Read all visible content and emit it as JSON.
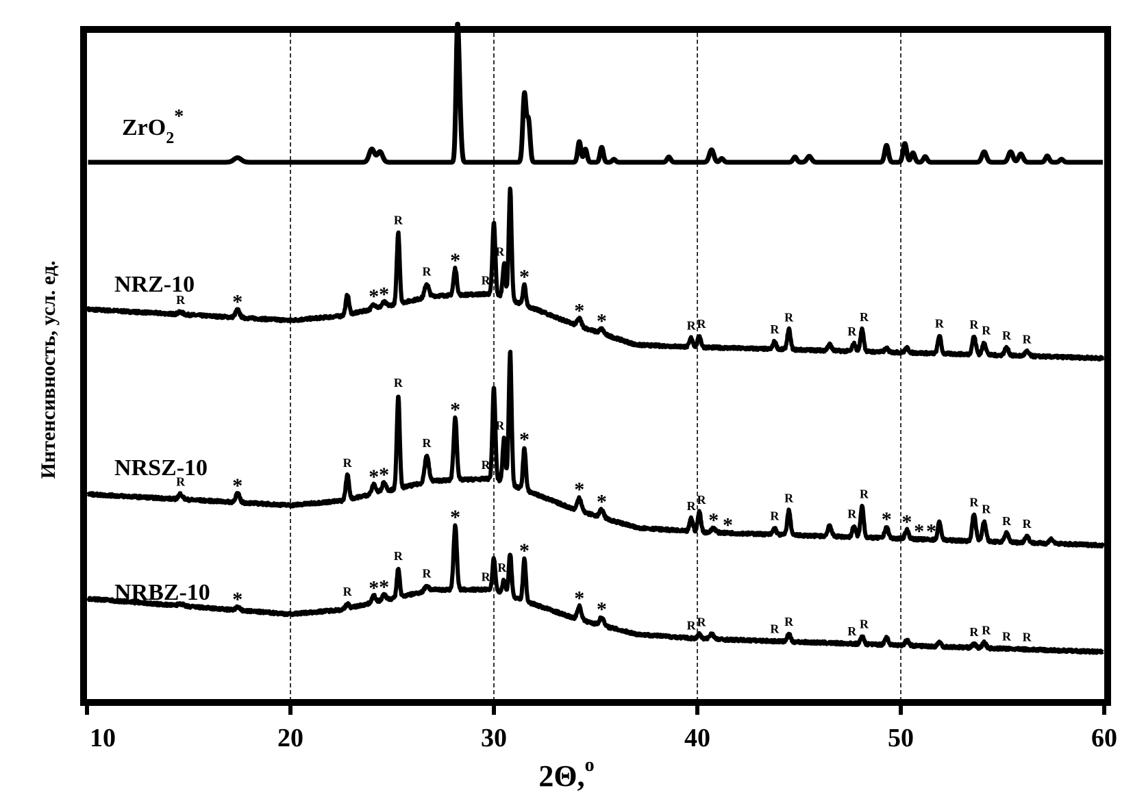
{
  "chart_data": {
    "type": "line",
    "xlabel": "2Θ,°",
    "xlabel_main": "2Θ,",
    "xlabel_sup": "o",
    "ylabel": "Интенсивность, усл. ед.",
    "xlim": [
      10,
      60
    ],
    "xticks": [
      10,
      20,
      30,
      40,
      50,
      60
    ],
    "xtick_labels": [
      "10",
      "20",
      "30",
      "40",
      "50",
      "60"
    ],
    "vertical_reference_lines": [
      20,
      30,
      40,
      50
    ],
    "grid": false,
    "series": [
      {
        "name": "ZrO2*",
        "name_main": "ZrO",
        "name_sub": "2",
        "name_sup": "*",
        "baseline": 0,
        "peaks": [
          {
            "x": 17.4,
            "h": 0.12,
            "w": 0.18
          },
          {
            "x": 24.0,
            "h": 0.35,
            "w": 0.13
          },
          {
            "x": 24.4,
            "h": 0.28,
            "w": 0.13
          },
          {
            "x": 28.2,
            "h": 2.9,
            "w": 0.07
          },
          {
            "x": 28.3,
            "h": 1.5,
            "w": 0.08
          },
          {
            "x": 31.5,
            "h": 1.8,
            "w": 0.08
          },
          {
            "x": 31.7,
            "h": 1.1,
            "w": 0.08
          },
          {
            "x": 34.2,
            "h": 0.55,
            "w": 0.08
          },
          {
            "x": 34.5,
            "h": 0.35,
            "w": 0.08
          },
          {
            "x": 35.3,
            "h": 0.4,
            "w": 0.08
          },
          {
            "x": 35.9,
            "h": 0.08,
            "w": 0.08
          },
          {
            "x": 38.6,
            "h": 0.14,
            "w": 0.09
          },
          {
            "x": 40.7,
            "h": 0.33,
            "w": 0.11
          },
          {
            "x": 41.2,
            "h": 0.1,
            "w": 0.09
          },
          {
            "x": 44.8,
            "h": 0.14,
            "w": 0.09
          },
          {
            "x": 45.5,
            "h": 0.16,
            "w": 0.11
          },
          {
            "x": 49.3,
            "h": 0.45,
            "w": 0.09
          },
          {
            "x": 50.2,
            "h": 0.5,
            "w": 0.09
          },
          {
            "x": 50.6,
            "h": 0.25,
            "w": 0.09
          },
          {
            "x": 51.2,
            "h": 0.15,
            "w": 0.09
          },
          {
            "x": 54.1,
            "h": 0.28,
            "w": 0.11
          },
          {
            "x": 55.4,
            "h": 0.28,
            "w": 0.11
          },
          {
            "x": 55.9,
            "h": 0.22,
            "w": 0.11
          },
          {
            "x": 57.2,
            "h": 0.17,
            "w": 0.09
          },
          {
            "x": 57.9,
            "h": 0.08,
            "w": 0.09
          }
        ],
        "peak_markers": []
      },
      {
        "name": "NRZ-10",
        "background": [
          [
            10,
            0.25
          ],
          [
            20,
            0.0
          ],
          [
            22.5,
            0.1
          ],
          [
            27,
            0.55
          ],
          [
            30,
            0.6
          ],
          [
            31.5,
            0.35
          ],
          [
            34,
            -0.1
          ],
          [
            37,
            -0.55
          ],
          [
            40,
            -0.6
          ],
          [
            50,
            -0.72
          ],
          [
            60,
            -0.85
          ]
        ],
        "peaks": [
          {
            "x": 14.6,
            "h": 0.05,
            "w": 0.12
          },
          {
            "x": 17.4,
            "h": 0.17,
            "w": 0.1
          },
          {
            "x": 22.8,
            "h": 0.45,
            "w": 0.08
          },
          {
            "x": 24.1,
            "h": 0.1,
            "w": 0.1
          },
          {
            "x": 24.6,
            "h": 0.1,
            "w": 0.1
          },
          {
            "x": 25.3,
            "h": 1.6,
            "w": 0.07
          },
          {
            "x": 26.7,
            "h": 0.3,
            "w": 0.1
          },
          {
            "x": 28.1,
            "h": 0.6,
            "w": 0.08
          },
          {
            "x": 30.0,
            "h": 1.6,
            "w": 0.07
          },
          {
            "x": 30.5,
            "h": 0.75,
            "w": 0.07
          },
          {
            "x": 30.8,
            "h": 2.5,
            "w": 0.07
          },
          {
            "x": 31.5,
            "h": 0.45,
            "w": 0.07
          },
          {
            "x": 34.2,
            "h": 0.17,
            "w": 0.1
          },
          {
            "x": 35.3,
            "h": 0.1,
            "w": 0.1
          },
          {
            "x": 39.7,
            "h": 0.2,
            "w": 0.08
          },
          {
            "x": 40.1,
            "h": 0.25,
            "w": 0.08
          },
          {
            "x": 43.8,
            "h": 0.17,
            "w": 0.08
          },
          {
            "x": 44.5,
            "h": 0.45,
            "w": 0.08
          },
          {
            "x": 46.5,
            "h": 0.14,
            "w": 0.09
          },
          {
            "x": 47.7,
            "h": 0.17,
            "w": 0.08
          },
          {
            "x": 48.1,
            "h": 0.5,
            "w": 0.08
          },
          {
            "x": 49.3,
            "h": 0.08,
            "w": 0.09
          },
          {
            "x": 50.3,
            "h": 0.1,
            "w": 0.09
          },
          {
            "x": 51.9,
            "h": 0.4,
            "w": 0.08
          },
          {
            "x": 53.6,
            "h": 0.4,
            "w": 0.09
          },
          {
            "x": 54.1,
            "h": 0.27,
            "w": 0.09
          },
          {
            "x": 55.2,
            "h": 0.17,
            "w": 0.1
          },
          {
            "x": 56.2,
            "h": 0.1,
            "w": 0.1
          }
        ],
        "peak_markers": [
          {
            "x": 14.6,
            "symbol": "R"
          },
          {
            "x": 17.4,
            "symbol": "*"
          },
          {
            "x": 24.1,
            "symbol": "*"
          },
          {
            "x": 24.6,
            "symbol": "*"
          },
          {
            "x": 25.3,
            "symbol": "R"
          },
          {
            "x": 26.7,
            "symbol": "R"
          },
          {
            "x": 28.1,
            "symbol": "*"
          },
          {
            "x": 29.6,
            "symbol": "R"
          },
          {
            "x": 30.3,
            "symbol": "R"
          },
          {
            "x": 31.5,
            "symbol": "*"
          },
          {
            "x": 34.2,
            "symbol": "*"
          },
          {
            "x": 35.3,
            "symbol": "*"
          },
          {
            "x": 39.7,
            "symbol": "R"
          },
          {
            "x": 40.2,
            "symbol": "R"
          },
          {
            "x": 43.8,
            "symbol": "R"
          },
          {
            "x": 44.5,
            "symbol": "R"
          },
          {
            "x": 47.6,
            "symbol": "R"
          },
          {
            "x": 48.2,
            "symbol": "R"
          },
          {
            "x": 51.9,
            "symbol": "R"
          },
          {
            "x": 53.6,
            "symbol": "R"
          },
          {
            "x": 54.2,
            "symbol": "R"
          },
          {
            "x": 55.2,
            "symbol": "R"
          },
          {
            "x": 56.2,
            "symbol": "R"
          }
        ]
      },
      {
        "name": "NRSZ-10",
        "background": [
          [
            10,
            0.25
          ],
          [
            20,
            0.0
          ],
          [
            22.5,
            0.1
          ],
          [
            27,
            0.55
          ],
          [
            30,
            0.6
          ],
          [
            31.5,
            0.35
          ],
          [
            34,
            -0.1
          ],
          [
            37,
            -0.5
          ],
          [
            40,
            -0.6
          ],
          [
            50,
            -0.75
          ],
          [
            60,
            -0.9
          ]
        ],
        "peaks": [
          {
            "x": 14.6,
            "h": 0.12,
            "w": 0.1
          },
          {
            "x": 17.4,
            "h": 0.2,
            "w": 0.1
          },
          {
            "x": 22.8,
            "h": 0.55,
            "w": 0.08
          },
          {
            "x": 24.1,
            "h": 0.2,
            "w": 0.1
          },
          {
            "x": 24.6,
            "h": 0.2,
            "w": 0.1
          },
          {
            "x": 25.3,
            "h": 2.1,
            "w": 0.07
          },
          {
            "x": 26.7,
            "h": 0.6,
            "w": 0.1
          },
          {
            "x": 28.1,
            "h": 1.4,
            "w": 0.08
          },
          {
            "x": 30.0,
            "h": 2.05,
            "w": 0.07
          },
          {
            "x": 30.5,
            "h": 1.0,
            "w": 0.07
          },
          {
            "x": 30.8,
            "h": 3.0,
            "w": 0.07
          },
          {
            "x": 31.5,
            "h": 0.95,
            "w": 0.07
          },
          {
            "x": 34.2,
            "h": 0.3,
            "w": 0.1
          },
          {
            "x": 35.3,
            "h": 0.17,
            "w": 0.1
          },
          {
            "x": 39.7,
            "h": 0.3,
            "w": 0.08
          },
          {
            "x": 40.1,
            "h": 0.45,
            "w": 0.08
          },
          {
            "x": 40.8,
            "h": 0.1,
            "w": 0.1
          },
          {
            "x": 43.8,
            "h": 0.14,
            "w": 0.08
          },
          {
            "x": 44.5,
            "h": 0.55,
            "w": 0.08
          },
          {
            "x": 46.5,
            "h": 0.25,
            "w": 0.09
          },
          {
            "x": 47.7,
            "h": 0.25,
            "w": 0.08
          },
          {
            "x": 48.1,
            "h": 0.7,
            "w": 0.08
          },
          {
            "x": 49.3,
            "h": 0.25,
            "w": 0.09
          },
          {
            "x": 50.3,
            "h": 0.2,
            "w": 0.09
          },
          {
            "x": 51.9,
            "h": 0.4,
            "w": 0.08
          },
          {
            "x": 53.6,
            "h": 0.6,
            "w": 0.09
          },
          {
            "x": 54.1,
            "h": 0.45,
            "w": 0.09
          },
          {
            "x": 55.2,
            "h": 0.2,
            "w": 0.1
          },
          {
            "x": 56.2,
            "h": 0.15,
            "w": 0.1
          },
          {
            "x": 57.4,
            "h": 0.1,
            "w": 0.1
          }
        ],
        "peak_markers": [
          {
            "x": 14.6,
            "symbol": "R"
          },
          {
            "x": 17.4,
            "symbol": "*"
          },
          {
            "x": 22.8,
            "symbol": "R"
          },
          {
            "x": 24.1,
            "symbol": "*"
          },
          {
            "x": 24.6,
            "symbol": "*"
          },
          {
            "x": 25.3,
            "symbol": "R"
          },
          {
            "x": 26.7,
            "symbol": "R"
          },
          {
            "x": 28.1,
            "symbol": "*"
          },
          {
            "x": 29.6,
            "symbol": "R"
          },
          {
            "x": 30.3,
            "symbol": "R"
          },
          {
            "x": 31.5,
            "symbol": "*"
          },
          {
            "x": 34.2,
            "symbol": "*"
          },
          {
            "x": 35.3,
            "symbol": "*"
          },
          {
            "x": 39.7,
            "symbol": "R"
          },
          {
            "x": 40.2,
            "symbol": "R"
          },
          {
            "x": 40.8,
            "symbol": "*"
          },
          {
            "x": 41.5,
            "symbol": "*"
          },
          {
            "x": 43.8,
            "symbol": "R"
          },
          {
            "x": 44.5,
            "symbol": "R"
          },
          {
            "x": 47.6,
            "symbol": "R"
          },
          {
            "x": 48.2,
            "symbol": "R"
          },
          {
            "x": 49.3,
            "symbol": "*"
          },
          {
            "x": 50.3,
            "symbol": "*"
          },
          {
            "x": 50.9,
            "symbol": "*"
          },
          {
            "x": 51.5,
            "symbol": "*"
          },
          {
            "x": 53.6,
            "symbol": "R"
          },
          {
            "x": 54.2,
            "symbol": "R"
          },
          {
            "x": 55.2,
            "symbol": "R"
          },
          {
            "x": 56.2,
            "symbol": "R"
          }
        ]
      },
      {
        "name": "NRBZ-10",
        "background": [
          [
            10,
            0.35
          ],
          [
            17,
            0.1
          ],
          [
            20,
            0.0
          ],
          [
            22.5,
            0.1
          ],
          [
            27,
            0.55
          ],
          [
            30,
            0.55
          ],
          [
            31.5,
            0.3
          ],
          [
            34,
            -0.1
          ],
          [
            37,
            -0.45
          ],
          [
            40,
            -0.55
          ],
          [
            50,
            -0.7
          ],
          [
            60,
            -0.85
          ]
        ],
        "peaks": [
          {
            "x": 14.6,
            "h": 0.05,
            "w": 0.12
          },
          {
            "x": 17.4,
            "h": 0.07,
            "w": 0.1
          },
          {
            "x": 22.8,
            "h": 0.1,
            "w": 0.08
          },
          {
            "x": 24.1,
            "h": 0.15,
            "w": 0.1
          },
          {
            "x": 24.6,
            "h": 0.12,
            "w": 0.1
          },
          {
            "x": 25.3,
            "h": 0.65,
            "w": 0.07
          },
          {
            "x": 26.7,
            "h": 0.12,
            "w": 0.1
          },
          {
            "x": 28.1,
            "h": 1.45,
            "w": 0.08
          },
          {
            "x": 30.0,
            "h": 0.7,
            "w": 0.07
          },
          {
            "x": 30.5,
            "h": 0.3,
            "w": 0.07
          },
          {
            "x": 30.8,
            "h": 0.95,
            "w": 0.07
          },
          {
            "x": 31.5,
            "h": 0.95,
            "w": 0.07
          },
          {
            "x": 34.2,
            "h": 0.3,
            "w": 0.1
          },
          {
            "x": 35.3,
            "h": 0.18,
            "w": 0.1
          },
          {
            "x": 40.1,
            "h": 0.1,
            "w": 0.08
          },
          {
            "x": 40.7,
            "h": 0.12,
            "w": 0.1
          },
          {
            "x": 44.5,
            "h": 0.17,
            "w": 0.08
          },
          {
            "x": 48.1,
            "h": 0.17,
            "w": 0.08
          },
          {
            "x": 49.3,
            "h": 0.17,
            "w": 0.09
          },
          {
            "x": 50.3,
            "h": 0.12,
            "w": 0.09
          },
          {
            "x": 51.9,
            "h": 0.1,
            "w": 0.08
          },
          {
            "x": 53.6,
            "h": 0.08,
            "w": 0.09
          },
          {
            "x": 54.1,
            "h": 0.12,
            "w": 0.09
          }
        ],
        "peak_markers": [
          {
            "x": 17.4,
            "symbol": "*"
          },
          {
            "x": 22.8,
            "symbol": "R"
          },
          {
            "x": 24.1,
            "symbol": "*"
          },
          {
            "x": 24.6,
            "symbol": "*"
          },
          {
            "x": 25.3,
            "symbol": "R"
          },
          {
            "x": 26.7,
            "symbol": "R"
          },
          {
            "x": 28.1,
            "symbol": "*"
          },
          {
            "x": 29.6,
            "symbol": "R"
          },
          {
            "x": 30.4,
            "symbol": "R"
          },
          {
            "x": 31.5,
            "symbol": "*"
          },
          {
            "x": 34.2,
            "symbol": "*"
          },
          {
            "x": 35.3,
            "symbol": "*"
          },
          {
            "x": 39.7,
            "symbol": "R"
          },
          {
            "x": 40.2,
            "symbol": "R"
          },
          {
            "x": 43.8,
            "symbol": "R"
          },
          {
            "x": 44.5,
            "symbol": "R"
          },
          {
            "x": 47.6,
            "symbol": "R"
          },
          {
            "x": 48.2,
            "symbol": "R"
          },
          {
            "x": 53.6,
            "symbol": "R"
          },
          {
            "x": 54.2,
            "symbol": "R"
          },
          {
            "x": 55.2,
            "symbol": "R"
          },
          {
            "x": 56.2,
            "symbol": "R"
          }
        ]
      }
    ]
  }
}
